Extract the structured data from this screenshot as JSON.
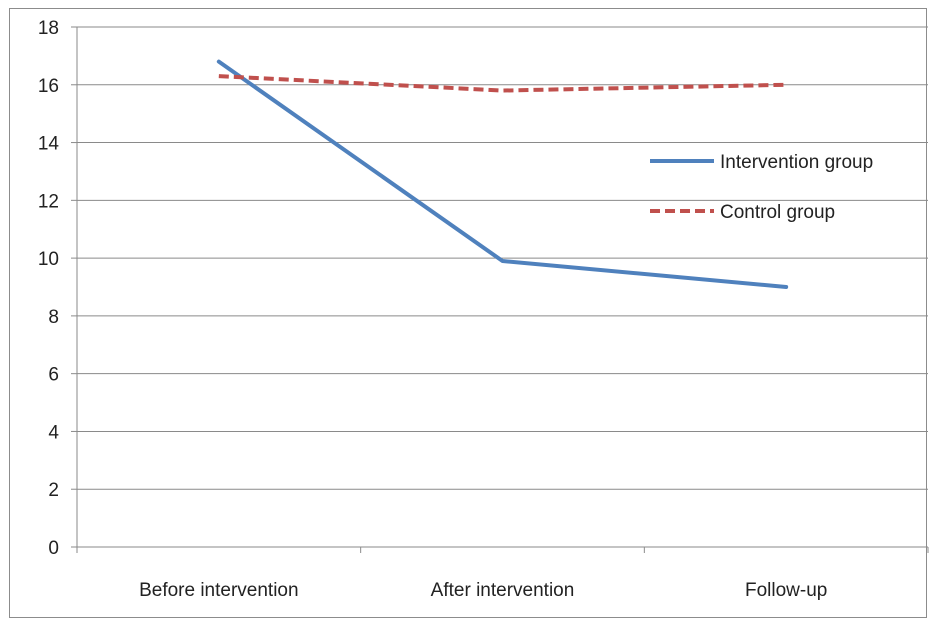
{
  "chart_data": {
    "type": "line",
    "title": "",
    "xlabel": "",
    "ylabel": "",
    "categories": [
      "Before intervention",
      "After intervention",
      "Follow-up"
    ],
    "ylim": [
      0,
      18
    ],
    "yticks": [
      0,
      2,
      4,
      6,
      8,
      10,
      12,
      14,
      16,
      18
    ],
    "grid": true,
    "legend_position": "right",
    "series": [
      {
        "name": "Intervention group",
        "values": [
          16.8,
          9.9,
          9.0
        ],
        "color": "#4f81bd",
        "style": "solid"
      },
      {
        "name": "Control group",
        "values": [
          16.3,
          15.8,
          16.0
        ],
        "color": "#c0504d",
        "style": "dashed"
      }
    ]
  }
}
